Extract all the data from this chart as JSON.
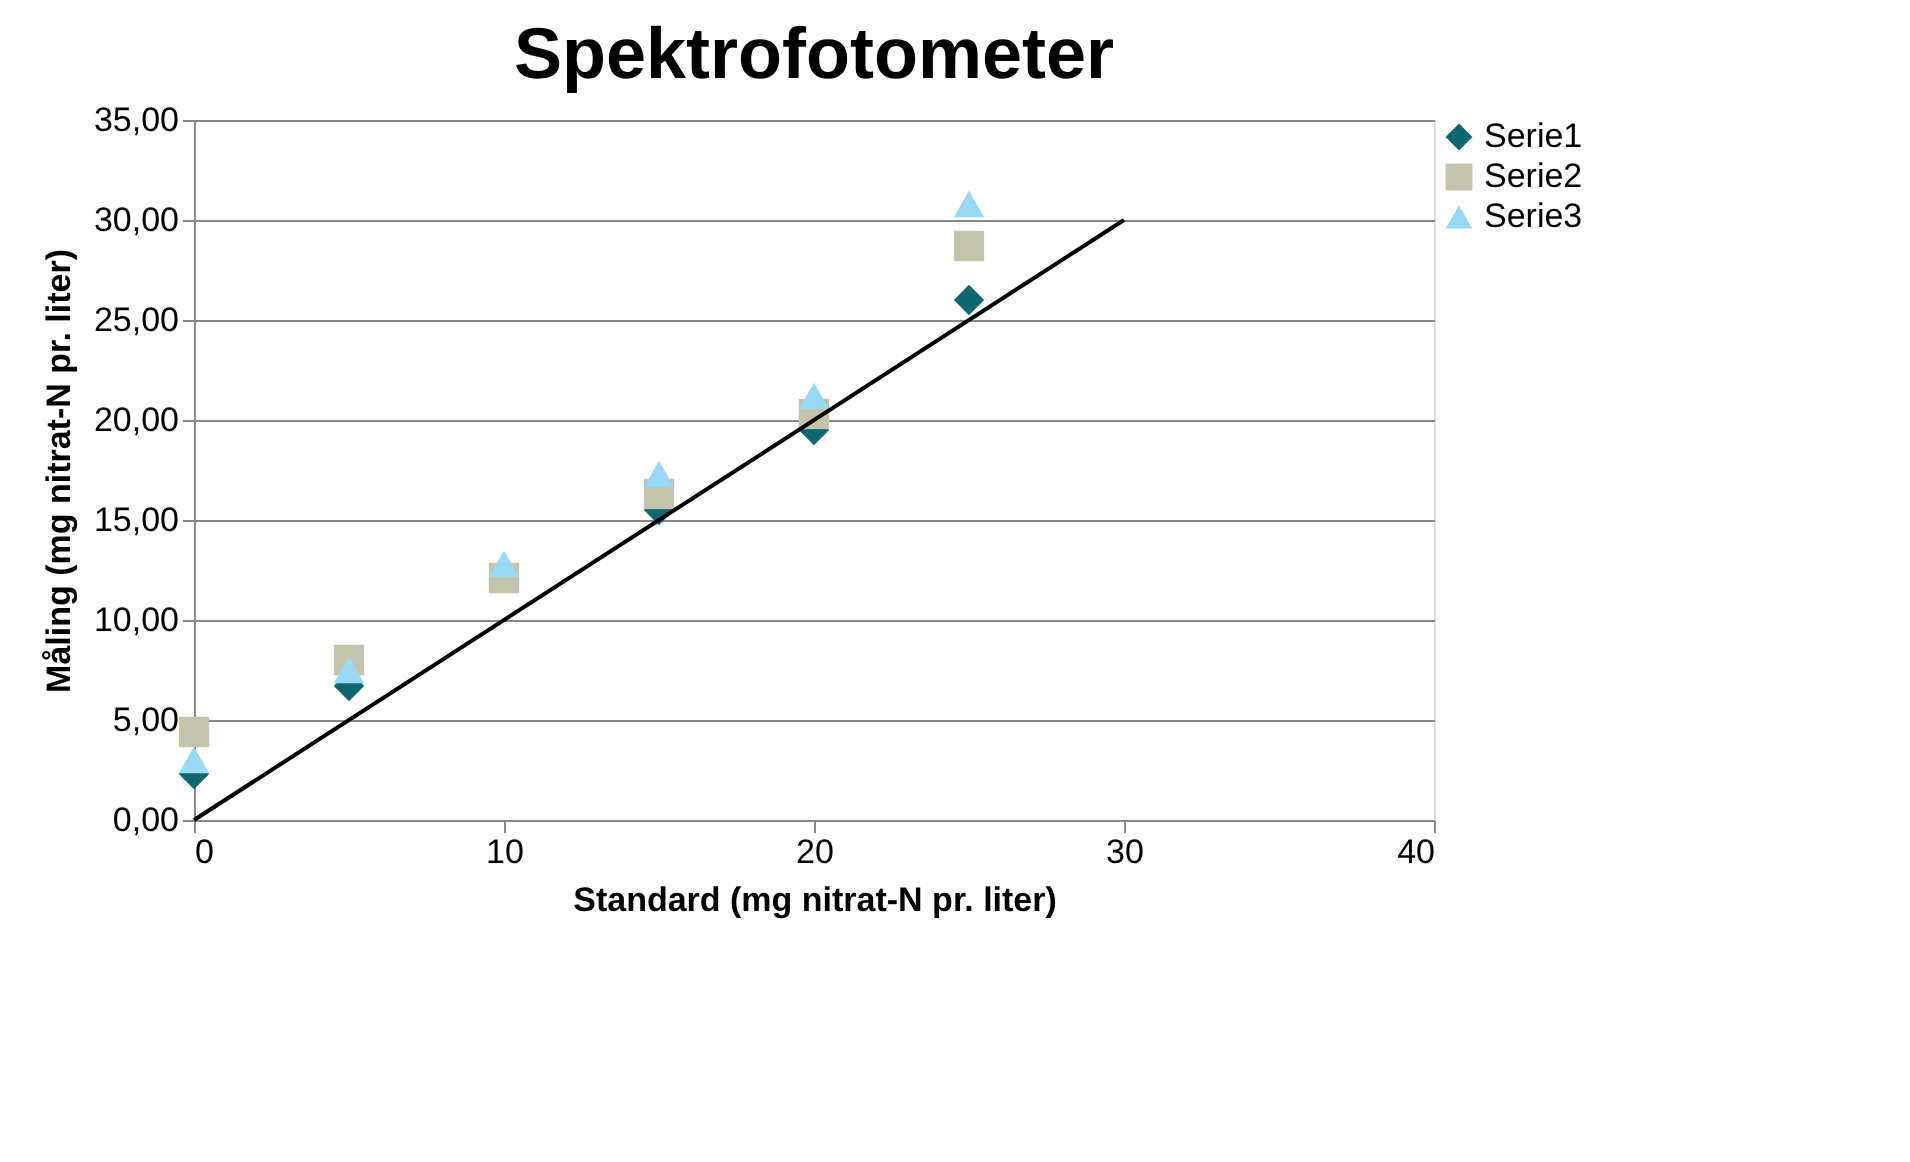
{
  "chart_data": {
    "type": "scatter",
    "title": "Spektrofotometer",
    "xlabel": "Standard (mg nitrat-N pr. liter)",
    "ylabel": "Måling (mg nitrat-N pr. liter)",
    "x": [
      0,
      5,
      10,
      15,
      20,
      25
    ],
    "series": [
      {
        "name": "Serie1",
        "color": "#0e6670",
        "marker": "diamond",
        "values": [
          2.3,
          6.7,
          null,
          15.5,
          19.5,
          26.0
        ]
      },
      {
        "name": "Serie2",
        "color": "#c4c3ad",
        "marker": "square",
        "values": [
          4.4,
          8.0,
          12.1,
          16.3,
          20.3,
          28.7
        ]
      },
      {
        "name": "Serie3",
        "color": "#99d9f4",
        "marker": "triangle",
        "values": [
          3.0,
          7.5,
          12.8,
          17.3,
          21.2,
          30.8
        ]
      },
      {
        "type": "line",
        "color": "#000000",
        "x": [
          0,
          30
        ],
        "values": [
          0,
          30
        ]
      }
    ],
    "xlim": [
      0,
      40
    ],
    "xticks": [
      0,
      10,
      20,
      30,
      40
    ],
    "ylim": [
      0,
      35
    ],
    "yticks": [
      {
        "value": 0,
        "label": "0,00"
      },
      {
        "value": 5,
        "label": "5,00"
      },
      {
        "value": 10,
        "label": "10,00"
      },
      {
        "value": 15,
        "label": "15,00"
      },
      {
        "value": 20,
        "label": "20,00"
      },
      {
        "value": 25,
        "label": "25,00"
      },
      {
        "value": 30,
        "label": "30,00"
      },
      {
        "value": 35,
        "label": "35,00"
      }
    ],
    "grid": "y",
    "legend": "right"
  }
}
